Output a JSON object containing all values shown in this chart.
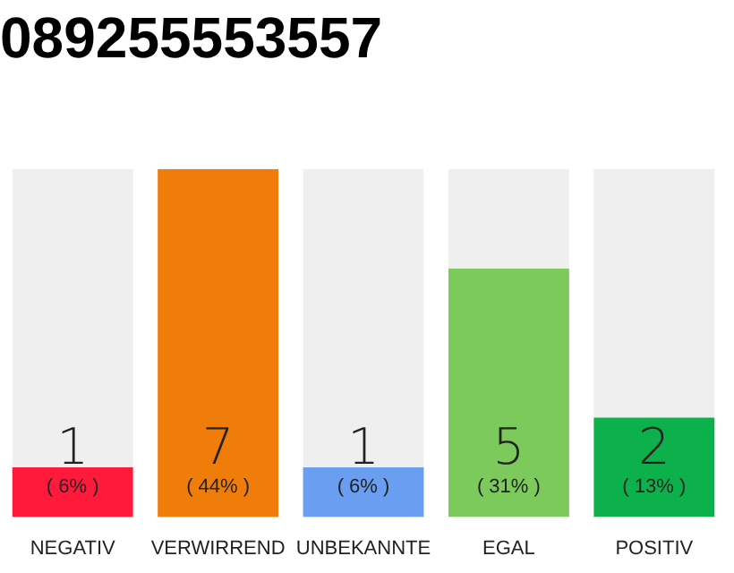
{
  "chart_data": {
    "type": "bar",
    "title": "089255553557",
    "categories": [
      "NEGATIV",
      "VERWIRREND",
      "UNBEKANNTE",
      "EGAL",
      "POSITIV"
    ],
    "values": [
      1,
      7,
      1,
      5,
      2
    ],
    "colors": [
      "#ff1a3c",
      "#f07d0a",
      "#6a9ef0",
      "#7dca5c",
      "#0db14b"
    ],
    "ylim": [
      0,
      7
    ],
    "data_labels": true,
    "grid": false,
    "legend": false,
    "tick_labels": "x",
    "annotations": [
      "( 6% )",
      "( 44% )",
      "( 6% )",
      "( 31% )",
      "( 13% )"
    ]
  }
}
